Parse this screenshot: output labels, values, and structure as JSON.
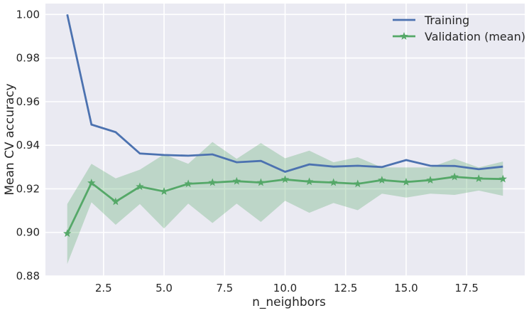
{
  "chart_data": {
    "type": "line",
    "title": "",
    "xlabel": "n_neighbors",
    "ylabel": "Mean CV accuracy",
    "xlim": [
      0.1,
      19.9
    ],
    "ylim": [
      0.88,
      1.005
    ],
    "xticks": [
      2.5,
      5.0,
      7.5,
      10.0,
      12.5,
      15.0,
      17.5
    ],
    "xtick_labels": [
      "2.5",
      "5.0",
      "7.5",
      "10.0",
      "12.5",
      "15.0",
      "17.5"
    ],
    "yticks": [
      0.88,
      0.9,
      0.92,
      0.94,
      0.96,
      0.98,
      1.0
    ],
    "ytick_labels": [
      "0.88",
      "0.90",
      "0.92",
      "0.94",
      "0.96",
      "0.98",
      "1.00"
    ],
    "grid": true,
    "legend_position": "top-right",
    "x": [
      1,
      2,
      3,
      4,
      5,
      6,
      7,
      8,
      9,
      10,
      11,
      12,
      13,
      14,
      15,
      16,
      17,
      18,
      19
    ],
    "series": [
      {
        "name": "Training",
        "color": "#4c72b0",
        "marker": "none",
        "values": [
          1.0,
          0.9495,
          0.946,
          0.9362,
          0.9355,
          0.9352,
          0.9358,
          0.9322,
          0.9328,
          0.9278,
          0.9312,
          0.9302,
          0.9306,
          0.93,
          0.9332,
          0.9306,
          0.9305,
          0.929,
          0.9302
        ]
      },
      {
        "name": "Validation (mean)",
        "color": "#55a868",
        "marker": "star",
        "values": [
          0.8995,
          0.9227,
          0.9141,
          0.921,
          0.9188,
          0.9223,
          0.9229,
          0.9235,
          0.9229,
          0.9243,
          0.9233,
          0.9229,
          0.9223,
          0.924,
          0.9231,
          0.924,
          0.9255,
          0.9247,
          0.9245
        ],
        "band_upper": [
          0.913,
          0.9315,
          0.9248,
          0.9288,
          0.9358,
          0.9315,
          0.9415,
          0.9338,
          0.941,
          0.934,
          0.9375,
          0.9322,
          0.9345,
          0.9298,
          0.9298,
          0.9298,
          0.9338,
          0.9298,
          0.9325
        ],
        "band_lower": [
          0.8855,
          0.9138,
          0.9035,
          0.913,
          0.9018,
          0.9132,
          0.9043,
          0.9132,
          0.9048,
          0.9145,
          0.909,
          0.9135,
          0.9102,
          0.9178,
          0.916,
          0.9178,
          0.9172,
          0.9192,
          0.9168
        ],
        "band_color": "#55a868"
      }
    ]
  }
}
